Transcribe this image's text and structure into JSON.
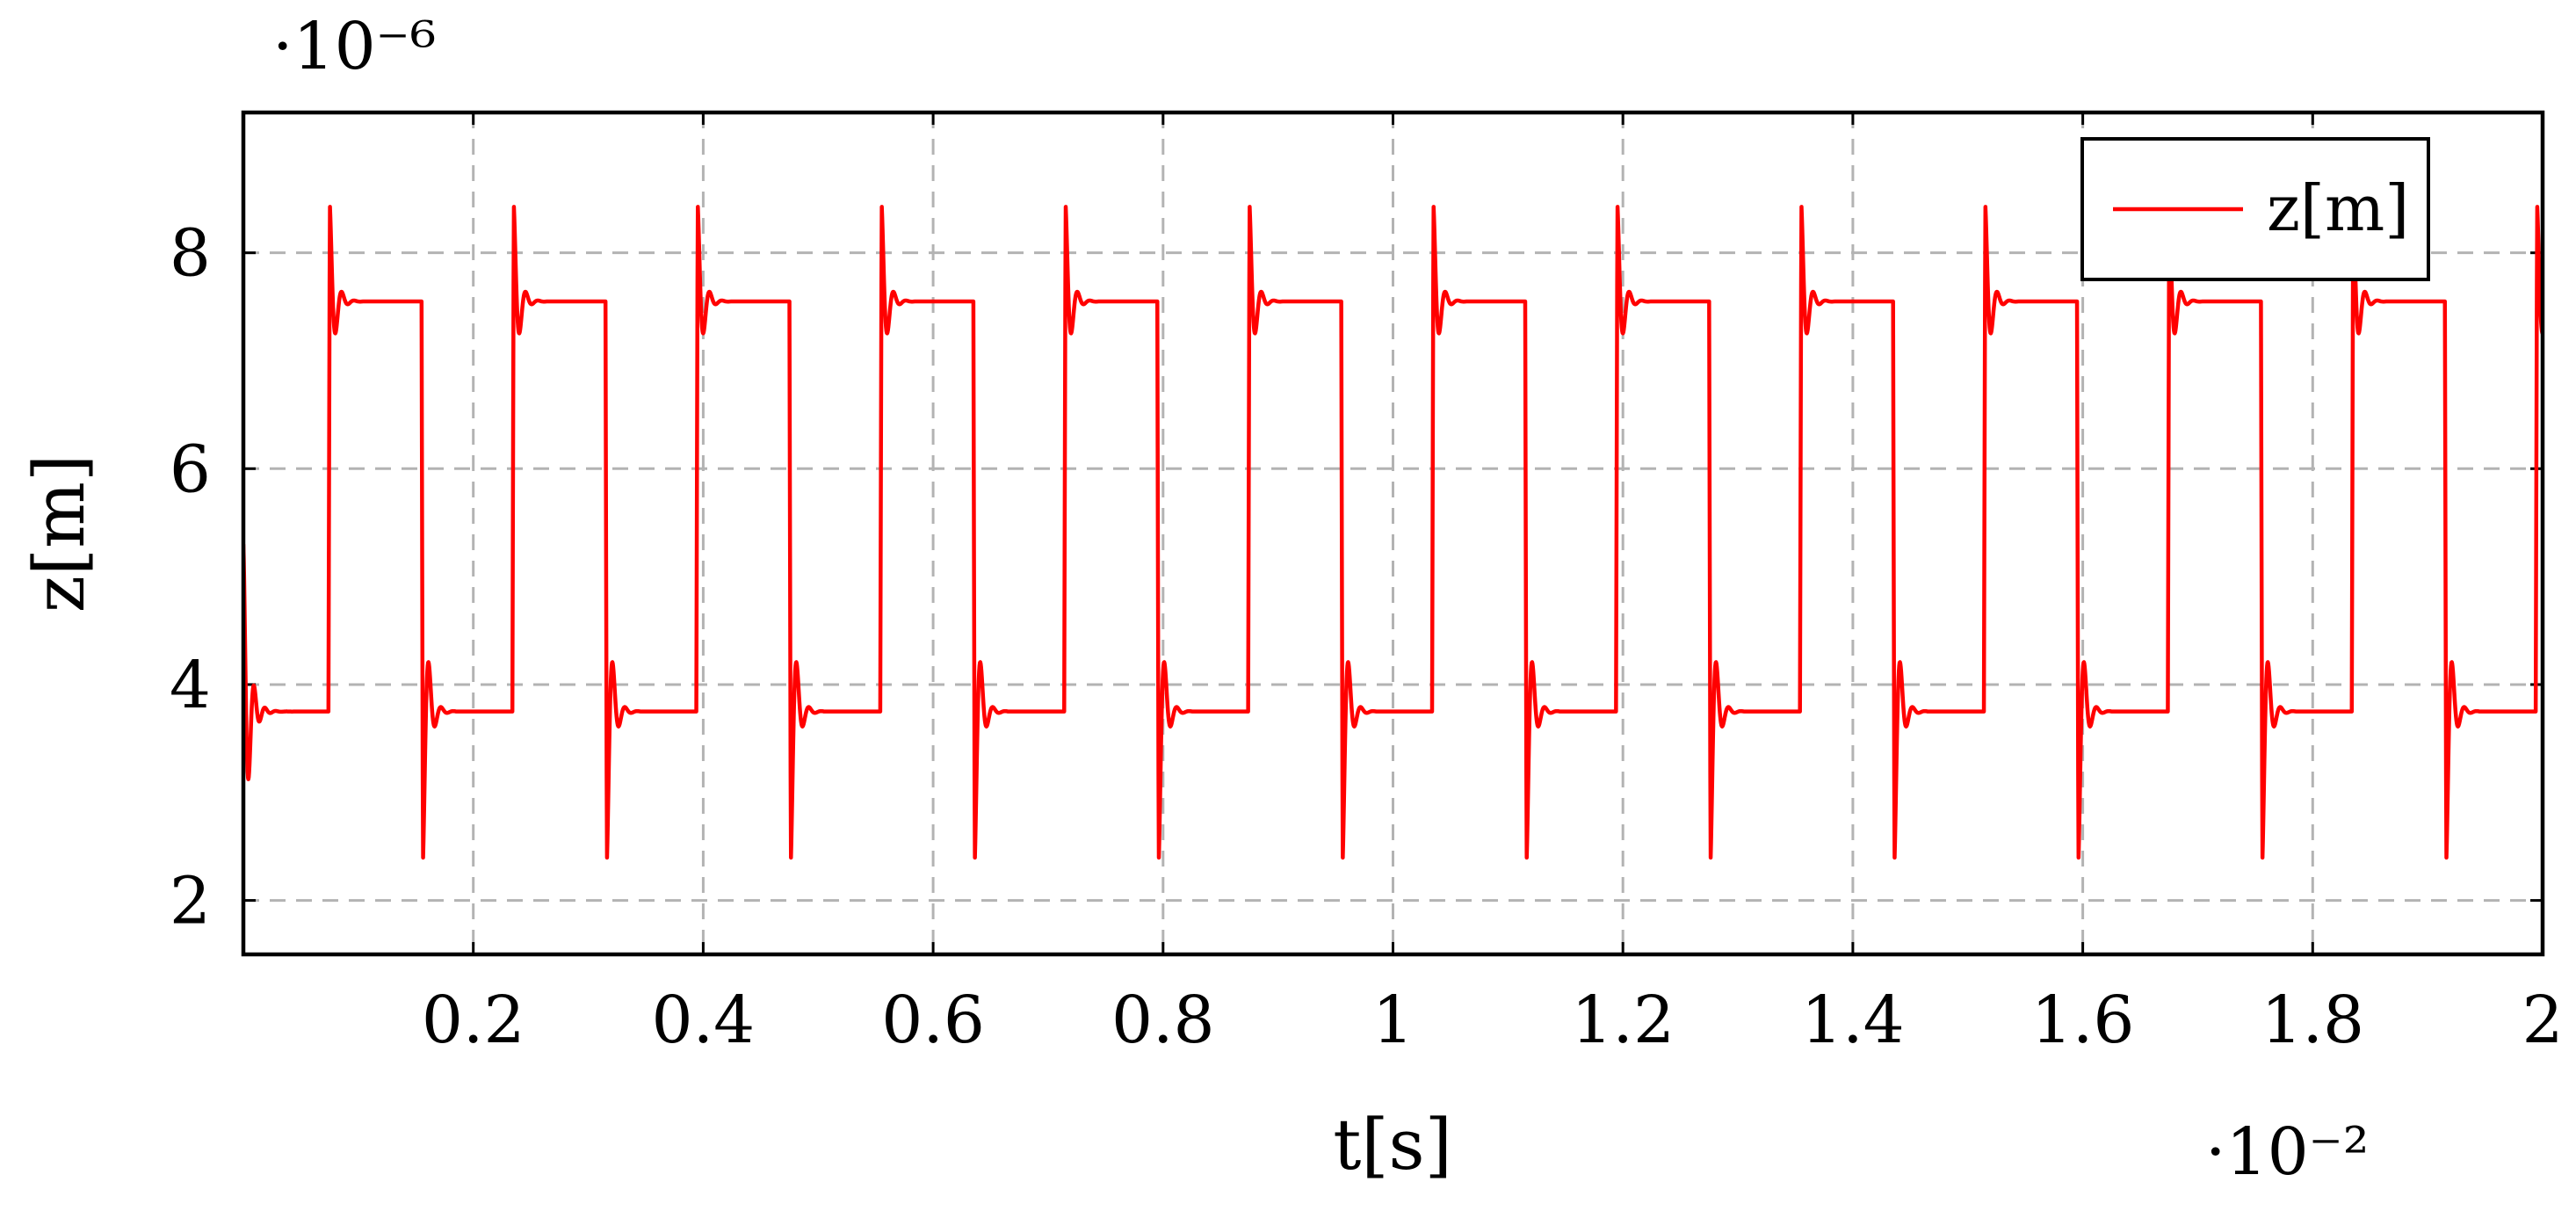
{
  "chart_data": {
    "type": "line",
    "title": "",
    "xlabel": "t[s]",
    "ylabel": "z[m]",
    "x_scale_label": "·10⁻²",
    "y_scale_label": "·10⁻⁶",
    "xlim": [
      0,
      2
    ],
    "ylim": [
      1.5,
      9.3
    ],
    "x_ticks": [
      0.2,
      0.4,
      0.6,
      0.8,
      1,
      1.2,
      1.4,
      1.6,
      1.8,
      2
    ],
    "x_tick_labels": [
      "0.2",
      "0.4",
      "0.6",
      "0.8",
      "1",
      "1.2",
      "1.4",
      "1.6",
      "1.8",
      "2"
    ],
    "y_ticks": [
      2,
      4,
      6,
      8
    ],
    "y_tick_labels": [
      "2",
      "4",
      "6",
      "8"
    ],
    "grid": true,
    "legend_position": "top-right",
    "series": [
      {
        "name": "z[m]",
        "color": "#ff0000",
        "signal": {
          "kind": "square-wave-with-ringing",
          "low_level": 3.75,
          "high_level": 7.55,
          "period": 0.16,
          "first_rise": 0.074,
          "first_fall": 0.155,
          "rise_overshoot_peak": 8.65,
          "fall_undershoot_peak": 2.05,
          "initial_value": 5.3,
          "initial_min": 3.05
        }
      }
    ]
  },
  "colors": {
    "series": "#ff0000",
    "grid": "#b3b3b3",
    "frame": "#000000",
    "background": "#ffffff"
  }
}
